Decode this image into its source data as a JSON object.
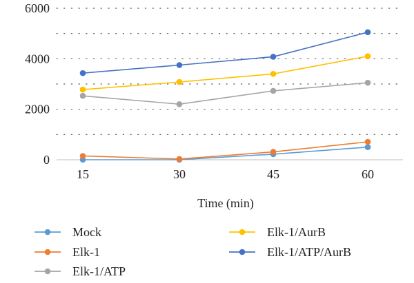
{
  "chart_data": {
    "type": "line",
    "title": "",
    "xlabel": "Time (min)",
    "ylabel": "",
    "x": [
      15,
      30,
      45,
      60
    ],
    "categories": [
      "15",
      "30",
      "45",
      "60"
    ],
    "ylim": [
      0,
      6000
    ],
    "yticks": [
      "0",
      "2000",
      "4000",
      "6000"
    ],
    "grid": "horizontal dotted",
    "legend_position": "bottom",
    "series": [
      {
        "name": "Mock",
        "color": "#5b9bd5",
        "values": [
          0,
          0,
          220,
          500
        ]
      },
      {
        "name": "Elk-1",
        "color": "#ed7d31",
        "values": [
          150,
          30,
          310,
          710
        ]
      },
      {
        "name": "Elk-1/ATP",
        "color": "#a5a5a5",
        "values": [
          2530,
          2200,
          2730,
          3050
        ]
      },
      {
        "name": "Elk-1/AurB",
        "color": "#ffc000",
        "values": [
          2780,
          3080,
          3400,
          4100
        ]
      },
      {
        "name": "Elk-1/ATP/AurB",
        "color": "#4472c4",
        "values": [
          3430,
          3750,
          4080,
          5050
        ]
      }
    ]
  }
}
